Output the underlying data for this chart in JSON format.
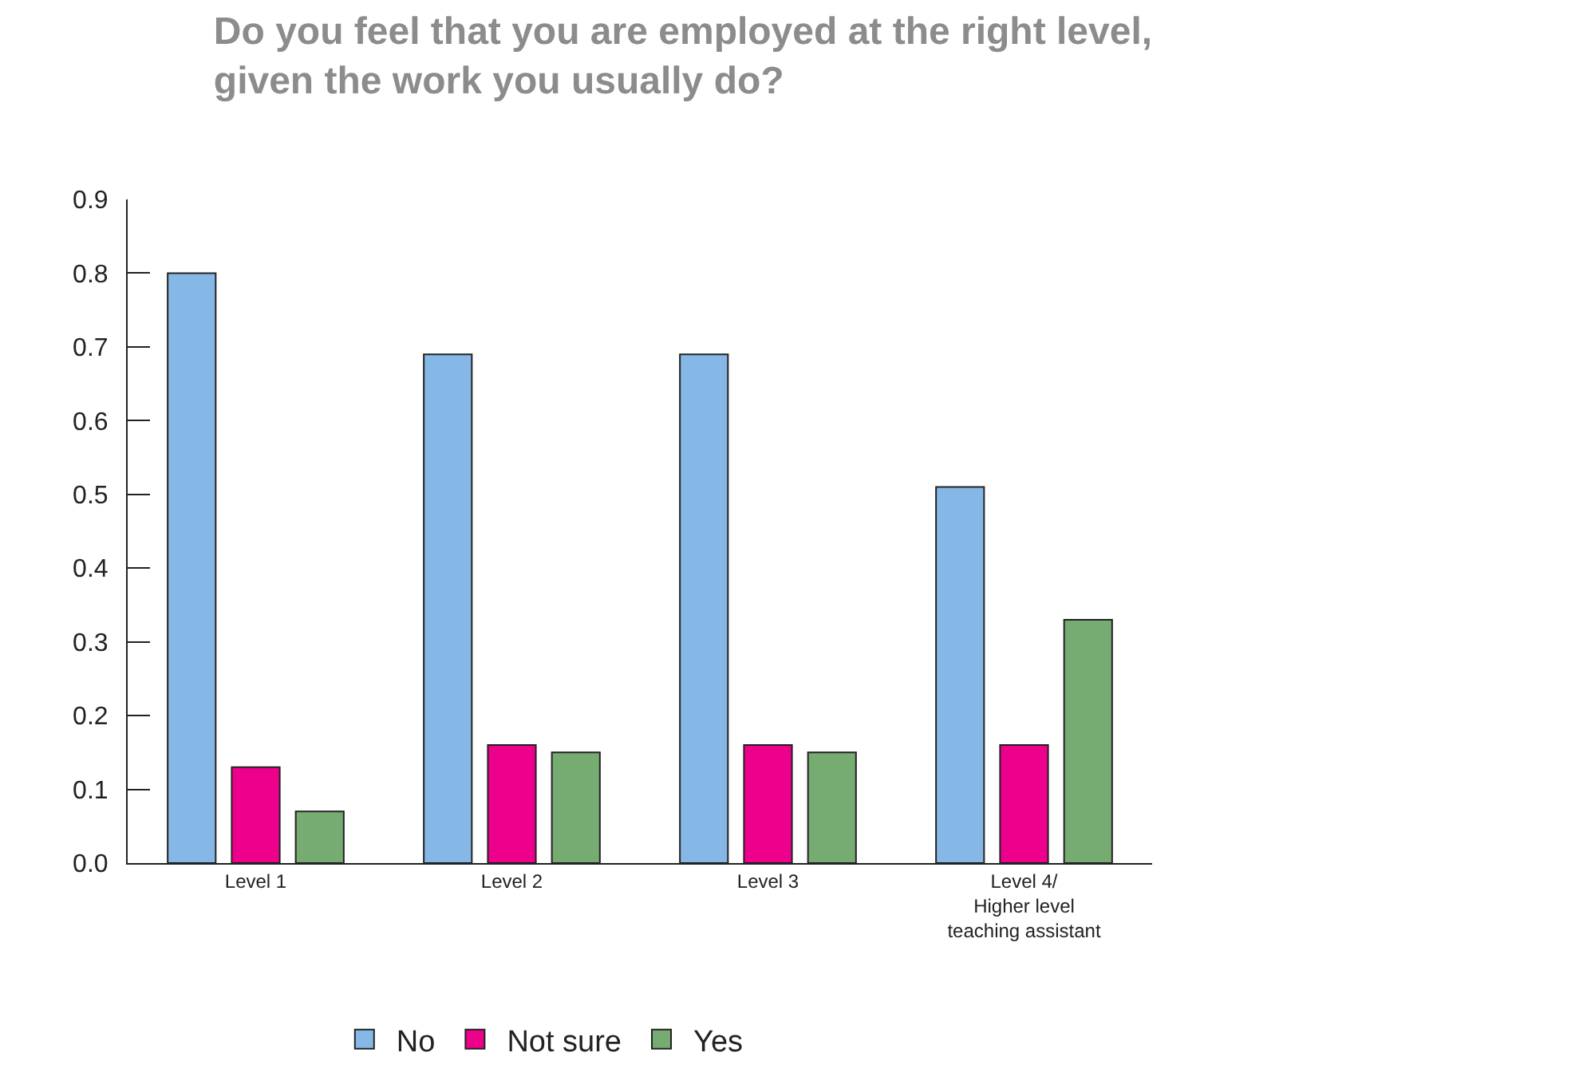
{
  "chart_data": {
    "type": "bar",
    "title": "Do you feel that you are employed at the right level,\ngiven the work you usually do?",
    "categories": [
      "Level 1",
      "Level 2",
      "Level 3",
      "Level 4/\nHigher level\nteaching assistant"
    ],
    "series": [
      {
        "name": "No",
        "color": "#85b8e6",
        "values": [
          0.8,
          0.69,
          0.69,
          0.51
        ]
      },
      {
        "name": "Not sure",
        "color": "#ec008c",
        "values": [
          0.13,
          0.16,
          0.16,
          0.16
        ]
      },
      {
        "name": "Yes",
        "color": "#76ab72",
        "values": [
          0.07,
          0.15,
          0.15,
          0.33
        ]
      }
    ],
    "ylim": [
      0,
      0.9
    ],
    "yticks": [
      {
        "value": 0,
        "label": "0.0"
      },
      0.1,
      0.2,
      0.3,
      0.4,
      0.5,
      0.6,
      0.7,
      0.8,
      0.9
    ],
    "legend": "bottom"
  }
}
